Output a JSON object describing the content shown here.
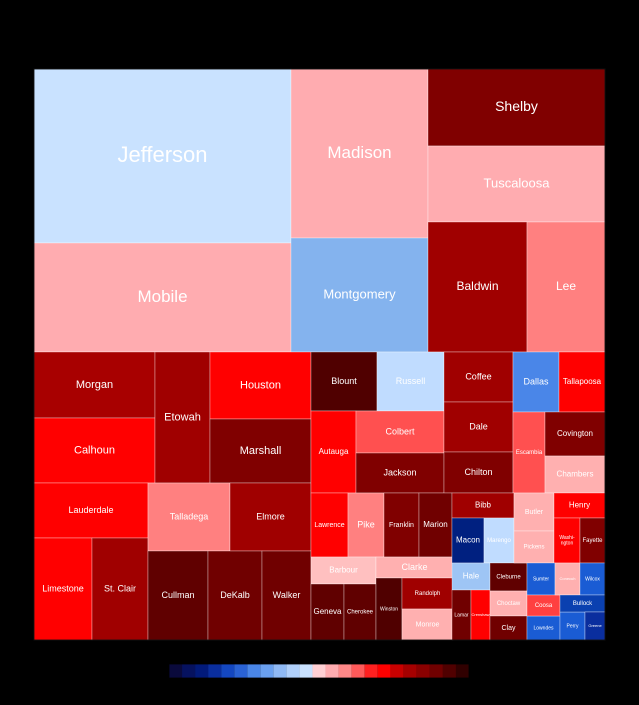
{
  "chart_data": {
    "type": "treemap",
    "title": "",
    "colors": {
      "background": "#000000",
      "tile_border": "#ffffff",
      "plot_frame": "#000000"
    },
    "color_scale": {
      "colors": [
        "#0a0a3c",
        "#06125f",
        "#021a7a",
        "#0a2e9e",
        "#1447c0",
        "#2a62d4",
        "#4a86e8",
        "#6aa0ef",
        "#8fb9f4",
        "#b0d0fa",
        "#c9e2ff",
        "#ffd0d4",
        "#ffacb0",
        "#ff8888",
        "#ff5a5a",
        "#ff2020",
        "#ff0000",
        "#c80000",
        "#a50000",
        "#8a0000",
        "#700000",
        "#500000",
        "#300000"
      ]
    },
    "tiles": [
      {
        "label": "Jefferson",
        "color": "#c9e2ff"
      },
      {
        "label": "Mobile",
        "color": "#ffacb0"
      },
      {
        "label": "Madison",
        "color": "#ffacb0"
      },
      {
        "label": "Montgomery",
        "color": "#84b3ee"
      },
      {
        "label": "Shelby",
        "color": "#800000"
      },
      {
        "label": "Tuscaloosa",
        "color": "#ffacb0"
      },
      {
        "label": "Baldwin",
        "color": "#a00000"
      },
      {
        "label": "Lee",
        "color": "#ff8080"
      },
      {
        "label": "Morgan",
        "color": "#a80000"
      },
      {
        "label": "Calhoun",
        "color": "#ff0000"
      },
      {
        "label": "Lauderdale",
        "color": "#ff0000"
      },
      {
        "label": "Limestone",
        "color": "#ff0000"
      },
      {
        "label": "St. Clair",
        "color": "#a00000"
      },
      {
        "label": "Etowah",
        "color": "#a00000"
      },
      {
        "label": "Houston",
        "color": "#ff0000"
      },
      {
        "label": "Marshall",
        "color": "#800000"
      },
      {
        "label": "Talladega",
        "color": "#ff8080"
      },
      {
        "label": "Elmore",
        "color": "#a00000"
      },
      {
        "label": "Cullman",
        "color": "#600000"
      },
      {
        "label": "DeKalb",
        "color": "#700000"
      },
      {
        "label": "Walker",
        "color": "#700000"
      },
      {
        "label": "Blount",
        "color": "#500000"
      },
      {
        "label": "Russell",
        "color": "#c0dcff"
      },
      {
        "label": "Autauga",
        "color": "#ff0000"
      },
      {
        "label": "Colbert",
        "color": "#ff5050"
      },
      {
        "label": "Jackson",
        "color": "#800000"
      },
      {
        "label": "Coffee",
        "color": "#a00000"
      },
      {
        "label": "Dale",
        "color": "#a00000"
      },
      {
        "label": "Chilton",
        "color": "#800000"
      },
      {
        "label": "Dallas",
        "color": "#4a86e8"
      },
      {
        "label": "Tallapoosa",
        "color": "#ff0000"
      },
      {
        "label": "Escambia",
        "color": "#ff5050"
      },
      {
        "label": "Covington",
        "color": "#800000"
      },
      {
        "label": "Chambers",
        "color": "#ffb0b0"
      },
      {
        "label": "Lawrence",
        "color": "#ff0000"
      },
      {
        "label": "Pike",
        "color": "#ff8080"
      },
      {
        "label": "Franklin",
        "color": "#800000"
      },
      {
        "label": "Marion",
        "color": "#700000"
      },
      {
        "label": "Barbour",
        "color": "#ffc0c0"
      },
      {
        "label": "Clarke",
        "color": "#ffb0b0"
      },
      {
        "label": "Geneva",
        "color": "#600000"
      },
      {
        "label": "Cherokee",
        "color": "#600000"
      },
      {
        "label": "Winston",
        "color": "#500000"
      },
      {
        "label": "Randolph",
        "color": "#a00000"
      },
      {
        "label": "Monroe",
        "color": "#ffb0b0"
      },
      {
        "label": "Bibb",
        "color": "#a00000"
      },
      {
        "label": "Macon",
        "color": "#002080"
      },
      {
        "label": "Marengo",
        "color": "#c0dcff"
      },
      {
        "label": "Hale",
        "color": "#9ec5f5"
      },
      {
        "label": "Lamar",
        "color": "#700000"
      },
      {
        "label": "Crenshaw",
        "color": "#ff0000"
      },
      {
        "label": "Cleburne",
        "color": "#600000"
      },
      {
        "label": "Choctaw",
        "color": "#ffb0b0"
      },
      {
        "label": "Clay",
        "color": "#700000"
      },
      {
        "label": "Butler",
        "color": "#ffb0b0"
      },
      {
        "label": "Pickens",
        "color": "#ffb0b0"
      },
      {
        "label": "Henry",
        "color": "#ff0000"
      },
      {
        "label": "Washington",
        "color": "#ff0000"
      },
      {
        "label": "Fayette",
        "color": "#800000"
      },
      {
        "label": "Sumter",
        "color": "#1a5cd4"
      },
      {
        "label": "Lowndes",
        "color": "#1a5cd4"
      },
      {
        "label": "Coosa",
        "color": "#ff4040"
      },
      {
        "label": "Perry",
        "color": "#1a5cd4"
      },
      {
        "label": "Conecuh",
        "color": "#ffb0b0"
      },
      {
        "label": "Wilcox",
        "color": "#1a5cd4"
      },
      {
        "label": "Bullock",
        "color": "#0a40b0"
      },
      {
        "label": "Greene",
        "color": "#0a2e9e"
      }
    ]
  }
}
